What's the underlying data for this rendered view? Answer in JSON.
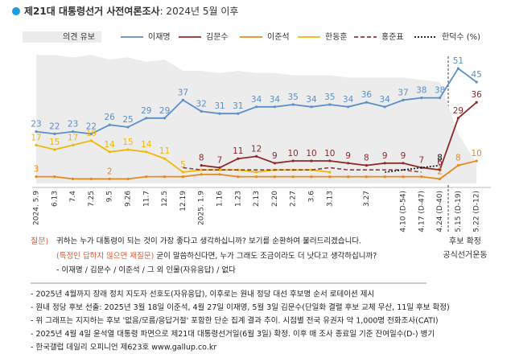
{
  "header": {
    "title": "제21대 대통령선거 사전여론조사",
    "subtitle": ": 2024년 5월 이후"
  },
  "chart_data": {
    "type": "line",
    "categories": [
      "2024. 5.9",
      "6.13",
      "7.4",
      "7.25",
      "9.5",
      "9.26",
      "11.7",
      "12.5",
      "12.19",
      "2025. 1.9",
      "1.16",
      "1.23",
      "2.13",
      "2.20",
      "2.27",
      "3.6",
      "3.13",
      null,
      "3.27",
      null,
      "4.10 (D-54)",
      "4.17 (D-47)",
      "4.24 (D-40)",
      "5.15 (D-19)",
      "5.22 (D-12)"
    ],
    "ylim": [
      0,
      60
    ],
    "series": [
      {
        "name": "의견 유보",
        "color": "#ececec",
        "kind": "area",
        "values": [
          57,
          57,
          56,
          57,
          55,
          56,
          54,
          55,
          50,
          50,
          49,
          50,
          49,
          49,
          48,
          48,
          48,
          47,
          47,
          47,
          47,
          46,
          45,
          22,
          9
        ]
      },
      {
        "name": "이재명",
        "color": "#5b8fc9",
        "labeled": true,
        "values": [
          23,
          22,
          23,
          22,
          26,
          25,
          29,
          29,
          37,
          32,
          31,
          31,
          34,
          34,
          35,
          34,
          35,
          34,
          36,
          34,
          37,
          38,
          38,
          51,
          45
        ]
      },
      {
        "name": "김문수",
        "color": "#8e2b2b",
        "labeled": true,
        "values": [
          null,
          null,
          null,
          null,
          null,
          null,
          null,
          null,
          null,
          8,
          7,
          11,
          12,
          9,
          10,
          10,
          10,
          9,
          8,
          9,
          9,
          7,
          6,
          29,
          36
        ]
      },
      {
        "name": "이준석",
        "color": "#e8891c",
        "values": [
          3,
          3,
          2,
          2,
          2,
          2,
          3,
          3,
          3,
          4,
          4,
          3,
          3,
          3,
          3,
          3,
          3,
          3,
          3,
          3,
          3,
          3,
          2,
          8,
          10
        ],
        "value_labels": [
          "3",
          null,
          null,
          null,
          "2",
          null,
          null,
          null,
          null,
          null,
          null,
          null,
          null,
          null,
          null,
          null,
          null,
          null,
          null,
          null,
          null,
          null,
          "2",
          "8",
          "10"
        ]
      },
      {
        "name": "한동훈",
        "color": "#f2b705",
        "values": [
          17,
          15,
          17,
          19,
          14,
          15,
          14,
          11,
          5,
          6,
          6,
          6,
          5,
          6,
          6,
          6,
          5,
          null,
          null,
          null,
          null,
          null,
          null,
          null,
          null
        ],
        "value_labels": [
          "17",
          "15",
          "17",
          "19",
          "14",
          "15",
          "14",
          "11",
          "5",
          null,
          null,
          null,
          null,
          null,
          null,
          null,
          null,
          null,
          null,
          null,
          null,
          null,
          null,
          null,
          null
        ]
      },
      {
        "name": "홍준표",
        "color": "#8e3a3a",
        "style": "dashed",
        "values": [
          null,
          null,
          null,
          null,
          null,
          null,
          null,
          null,
          7,
          6,
          6,
          6,
          6,
          6,
          6,
          6,
          7,
          6,
          6,
          6,
          6,
          5,
          null,
          null,
          null
        ]
      },
      {
        "name": "한덕수 (%)",
        "color": "#111111",
        "style": "dotted",
        "values": [
          null,
          null,
          null,
          null,
          null,
          null,
          null,
          null,
          null,
          null,
          null,
          null,
          null,
          null,
          null,
          null,
          null,
          null,
          null,
          5,
          6,
          7,
          8,
          null,
          null
        ],
        "value_labels": [
          null,
          null,
          null,
          null,
          null,
          null,
          null,
          null,
          null,
          null,
          null,
          null,
          null,
          null,
          null,
          null,
          null,
          null,
          null,
          null,
          null,
          null,
          "8",
          null,
          null
        ]
      }
    ],
    "annotations": [
      "후보 확정",
      "공식선거운동"
    ]
  },
  "question": {
    "label": "질문)",
    "line1": "귀하는 누가 대통령이 되는 것이 가장 좋다고 생각하십니까? 보기를 순환하여 불러드리겠습니다.",
    "line2_mark": "(특정인 답하지 않으면 재질문)",
    "line2": " 굳이 말씀하신다면, 누가 그래도 조금이라도 더 낫다고 생각하십니까?",
    "line3": "- 이재명 / 김문수 / 이준석 / 그 외 인물(자유응답) / 없다"
  },
  "notes": [
    "- 2025년 4월까지 장래 정치 지도자 선호도(자유응답), 이후로는 원내 정당 대선 후보명 순서 로테이션 제시",
    "- 원내 정당 후보 선출: 2025년 3월 18일 이준석, 4월 27일 이재명, 5월 3일 김문수(단일화 결렬 후보 교체 무산, 11일 후보 확정)",
    "- 위 그래프는 지지하는 후보 '없음/모름/응답거절' 포함한 단순 집계 결과 추이. 시점별 전국 유권자 약 1,000명 전화조사(CATI)",
    "- 2025년 4월 4일 윤석열 대통령 파면으로 제21대 대통령선거일(6월 3일) 확정. 이후 매 조사 종료일 기준 잔여일수(D-) 병기",
    "- 한국갤럽 데일리 오피니언 제623호 www.gallup.co.kr"
  ]
}
